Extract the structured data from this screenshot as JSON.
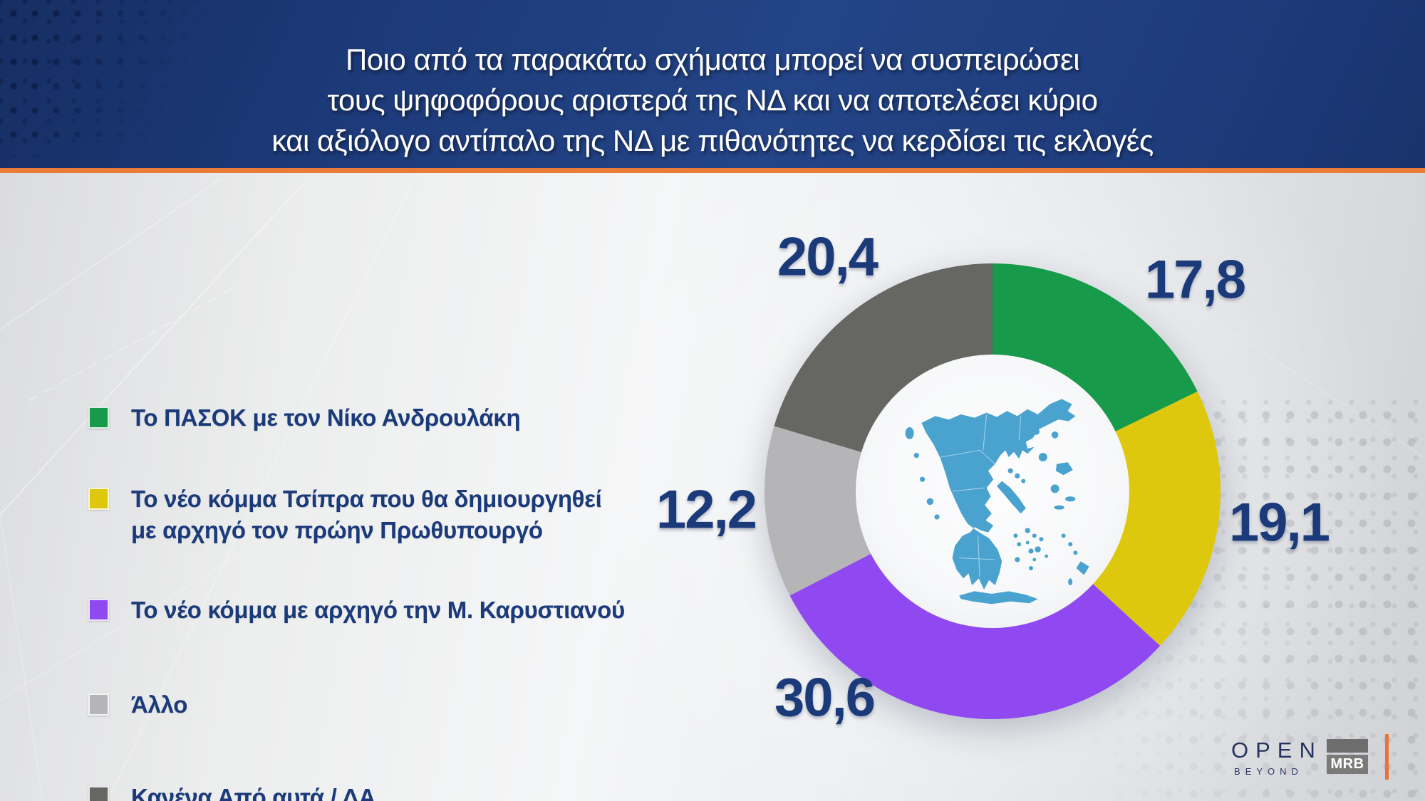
{
  "header": {
    "line1": "Ποιο από τα παρακάτω σχήματα μπορεί να συσπειρώσει",
    "line2": "τους ψηφοφόρους αριστερά της ΝΔ και να αποτελέσει κύριο",
    "line3": "και αξιόλογο αντίπαλο της ΝΔ με πιθανότητες να κερδίσει τις εκλογές"
  },
  "legend": {
    "items": [
      {
        "lines": [
          "Το ΠΑΣΟΚ με τον Νίκο Ανδρουλάκη"
        ],
        "color": "#179a49"
      },
      {
        "lines": [
          "Το νέο κόμμα Τσίπρα που θα δημιουργηθεί",
          "με αρχηγό τον πρώην Πρωθυπουργό"
        ],
        "color": "#ddc80d"
      },
      {
        "lines": [
          "Το νέο κόμμα με αρχηγό την Μ. Καρυστιανού"
        ],
        "color": "#9049f1"
      },
      {
        "lines": [
          "Άλλο"
        ],
        "color": "#b5b5b7"
      },
      {
        "lines": [
          "Κανένα Από αυτά / ΔΑ"
        ],
        "color": "#666663"
      }
    ]
  },
  "chart_data": {
    "type": "pie",
    "subtype": "donut",
    "title": "Ποιο από τα παρακάτω σχήματα μπορεί να συσπειρώσει τους ψηφοφόρους αριστερά της ΝΔ και να αποτελέσει κύριο και αξιόλογο αντίπαλο της ΝΔ με πιθανότητες να κερδίσει τις εκλογές",
    "categories": [
      "Το ΠΑΣΟΚ με τον Νίκο Ανδρουλάκη",
      "Το νέο κόμμα Τσίπρα που θα δημιουργηθεί με αρχηγό τον πρώην Πρωθυπουργό",
      "Το νέο κόμμα με αρχηγό την Μ. Καρυστιανού",
      "Άλλο",
      "Κανένα Από αυτά / ΔΑ"
    ],
    "values": [
      17.8,
      19.1,
      30.6,
      12.2,
      20.4
    ],
    "value_labels": [
      "17,8",
      "19,1",
      "30,6",
      "12,2",
      "20,4"
    ],
    "colors": [
      "#179a49",
      "#ddc80d",
      "#9049f1",
      "#b5b5b7",
      "#666663"
    ],
    "start_angle_deg": 0,
    "direction": "clockwise",
    "inner_radius_ratio": 0.59,
    "legend_position": "left",
    "center_icon": "greece-map",
    "label_color": "#1b3a7a"
  },
  "footer": {
    "open": "OPEN",
    "beyond": "BEYOND",
    "mrb": "MRB"
  },
  "colors": {
    "header_bg": "#1e3c7c",
    "accent_orange": "#e97c38",
    "text_navy": "#1b3a7a",
    "map_blue": "#4aa2cf"
  }
}
